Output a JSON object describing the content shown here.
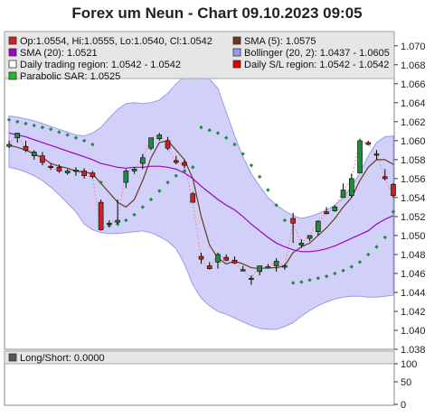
{
  "chart_data": {
    "type": "candlestick",
    "title": "Forex um Neun - Chart 09.10.2023 09:05",
    "ylim": [
      1.038,
      1.0715
    ],
    "yticks": [
      "1.070",
      "1.068",
      "1.066",
      "1.064",
      "1.062",
      "1.060",
      "1.058",
      "1.056",
      "1.054",
      "1.052",
      "1.050",
      "1.048",
      "1.046",
      "1.044",
      "1.042",
      "1.040",
      "1.038"
    ],
    "legend": [
      {
        "label": "Op:1.0554, Hi:1.0555, Lo:1.0540, Cl:1.0542",
        "color": "#cc2222",
        "row": 0,
        "col": 0
      },
      {
        "label": "SMA (5): 1.0575",
        "color": "#6b3a1e",
        "row": 0,
        "col": 1
      },
      {
        "label": "SMA (20): 1.0521",
        "color": "#a000c8",
        "row": 1,
        "col": 0
      },
      {
        "label": "Bollinger (20, 2): 1.0437 - 1.0605",
        "color": "#9a9af0",
        "row": 1,
        "col": 1
      },
      {
        "label": "Daily trading region: 1.0542 - 1.0542",
        "color": "#ffffff",
        "row": 2,
        "col": 0
      },
      {
        "label": "Daily S/L region: 1.0542 - 1.0542",
        "color": "#dd0000",
        "row": 2,
        "col": 1
      },
      {
        "label": "Parabolic SAR: 1.0525",
        "color": "#22bb22",
        "row": 3,
        "col": 0
      }
    ],
    "colors": {
      "up": "#1e8c3a",
      "down": "#cc2222",
      "band": "#c8c8f8",
      "band_edge": "#9a9af0",
      "sma5": "#6b3a1e",
      "sma20": "#a000c8",
      "sar": "#1e8c3a",
      "sl_line": "#ff8888"
    },
    "candles": [
      {
        "o": 1.0594,
        "h": 1.06,
        "l": 1.0592,
        "c": 1.0596
      },
      {
        "o": 1.0603,
        "h": 1.0608,
        "l": 1.0598,
        "c": 1.0608
      },
      {
        "o": 1.0594,
        "h": 1.06,
        "l": 1.0588,
        "c": 1.059
      },
      {
        "o": 1.0584,
        "h": 1.059,
        "l": 1.058,
        "c": 1.0588
      },
      {
        "o": 1.0584,
        "h": 1.0588,
        "l": 1.0574,
        "c": 1.0577
      },
      {
        "o": 1.0573,
        "h": 1.0576,
        "l": 1.0569,
        "c": 1.0572
      },
      {
        "o": 1.0572,
        "h": 1.0575,
        "l": 1.0566,
        "c": 1.0568
      },
      {
        "o": 1.0566,
        "h": 1.057,
        "l": 1.0564,
        "c": 1.0568
      },
      {
        "o": 1.0568,
        "h": 1.0572,
        "l": 1.0563,
        "c": 1.0569
      },
      {
        "o": 1.0568,
        "h": 1.0571,
        "l": 1.056,
        "c": 1.0563
      },
      {
        "o": 1.0566,
        "h": 1.0568,
        "l": 1.056,
        "c": 1.0562
      },
      {
        "o": 1.0535,
        "h": 1.0538,
        "l": 1.0505,
        "c": 1.0506
      },
      {
        "o": 1.0513,
        "h": 1.0516,
        "l": 1.051,
        "c": 1.0513
      },
      {
        "o": 1.0514,
        "h": 1.0538,
        "l": 1.0512,
        "c": 1.0516
      },
      {
        "o": 1.0556,
        "h": 1.057,
        "l": 1.055,
        "c": 1.0568
      },
      {
        "o": 1.0568,
        "h": 1.0572,
        "l": 1.0565,
        "c": 1.057
      },
      {
        "o": 1.0576,
        "h": 1.0586,
        "l": 1.057,
        "c": 1.0582
      },
      {
        "o": 1.0592,
        "h": 1.0603,
        "l": 1.059,
        "c": 1.0603
      },
      {
        "o": 1.0602,
        "h": 1.0608,
        "l": 1.06,
        "c": 1.0606
      },
      {
        "o": 1.06,
        "h": 1.0604,
        "l": 1.059,
        "c": 1.0592
      },
      {
        "o": 1.0579,
        "h": 1.0584,
        "l": 1.0575,
        "c": 1.0577
      },
      {
        "o": 1.0577,
        "h": 1.058,
        "l": 1.0571,
        "c": 1.0574
      },
      {
        "o": 1.0544,
        "h": 1.0546,
        "l": 1.0535,
        "c": 1.0535
      },
      {
        "o": 1.0478,
        "h": 1.0482,
        "l": 1.047,
        "c": 1.0475
      },
      {
        "o": 1.0468,
        "h": 1.0472,
        "l": 1.0464,
        "c": 1.0465
      },
      {
        "o": 1.0472,
        "h": 1.0482,
        "l": 1.0465,
        "c": 1.048
      },
      {
        "o": 1.0477,
        "h": 1.048,
        "l": 1.0473,
        "c": 1.0474
      },
      {
        "o": 1.0474,
        "h": 1.0478,
        "l": 1.047,
        "c": 1.0471
      },
      {
        "o": 1.0464,
        "h": 1.0468,
        "l": 1.0462,
        "c": 1.0463
      },
      {
        "o": 1.0455,
        "h": 1.0458,
        "l": 1.0448,
        "c": 1.0455
      },
      {
        "o": 1.0462,
        "h": 1.0468,
        "l": 1.0458,
        "c": 1.0468
      },
      {
        "o": 1.0466,
        "h": 1.047,
        "l": 1.0465,
        "c": 1.0467
      },
      {
        "o": 1.0468,
        "h": 1.0476,
        "l": 1.0462,
        "c": 1.0473
      },
      {
        "o": 1.0467,
        "h": 1.047,
        "l": 1.0464,
        "c": 1.0468
      },
      {
        "o": 1.0518,
        "h": 1.0524,
        "l": 1.0492,
        "c": 1.0513
      },
      {
        "o": 1.049,
        "h": 1.0496,
        "l": 1.0487,
        "c": 1.0492
      },
      {
        "o": 1.0497,
        "h": 1.05,
        "l": 1.0494,
        "c": 1.05
      },
      {
        "o": 1.0504,
        "h": 1.0516,
        "l": 1.05,
        "c": 1.0515
      },
      {
        "o": 1.0525,
        "h": 1.053,
        "l": 1.0522,
        "c": 1.0523
      },
      {
        "o": 1.0526,
        "h": 1.0532,
        "l": 1.0525,
        "c": 1.053
      },
      {
        "o": 1.054,
        "h": 1.0555,
        "l": 1.054,
        "c": 1.0548
      },
      {
        "o": 1.0542,
        "h": 1.0565,
        "l": 1.054,
        "c": 1.056
      },
      {
        "o": 1.0566,
        "h": 1.0602,
        "l": 1.0566,
        "c": 1.06
      },
      {
        "o": 1.0598,
        "h": 1.06,
        "l": 1.0595,
        "c": 1.0596
      },
      {
        "o": 1.0586,
        "h": 1.059,
        "l": 1.058,
        "c": 1.0585
      },
      {
        "o": 1.0562,
        "h": 1.057,
        "l": 1.0558,
        "c": 1.056
      },
      {
        "o": 1.0554,
        "h": 1.0555,
        "l": 1.054,
        "c": 1.0542
      }
    ],
    "sma5": [
      1.0595,
      1.0593,
      1.059,
      1.0586,
      1.0582,
      1.0576,
      1.0573,
      1.0571,
      1.0568,
      1.0567,
      1.0565,
      1.0555,
      1.0545,
      1.0535,
      1.053,
      1.0538,
      1.0558,
      1.0582,
      1.0598,
      1.06,
      1.059,
      1.058,
      1.056,
      1.052,
      1.049,
      1.0476,
      1.047,
      1.0473,
      1.047,
      1.0466,
      1.0465,
      1.0466,
      1.0466,
      1.0468,
      1.0482,
      1.0488,
      1.0492,
      1.05,
      1.0508,
      1.0518,
      1.053,
      1.054,
      1.0558,
      1.0572,
      1.058,
      1.058,
      1.0575
    ],
    "sma20": [
      1.0608,
      1.0606,
      1.0604,
      1.0601,
      1.0598,
      1.0595,
      1.0592,
      1.0589,
      1.0586,
      1.0583,
      1.058,
      1.0576,
      1.0574,
      1.0572,
      1.0571,
      1.0572,
      1.0572,
      1.0573,
      1.0573,
      1.0572,
      1.057,
      1.0566,
      1.056,
      1.0552,
      1.0545,
      1.0538,
      1.0532,
      1.0527,
      1.052,
      1.0512,
      1.0505,
      1.0498,
      1.0492,
      1.0488,
      1.0485,
      1.0483,
      1.0483,
      1.0484,
      1.0486,
      1.0489,
      1.0493,
      1.0497,
      1.0501,
      1.0505,
      1.0512,
      1.0517,
      1.0521
    ],
    "boll_upper": [
      1.0626,
      1.0625,
      1.0623,
      1.0621,
      1.0618,
      1.0615,
      1.0612,
      1.0609,
      1.0606,
      1.0605,
      1.0608,
      1.0614,
      1.0624,
      1.0633,
      1.0639,
      1.064,
      1.0639,
      1.064,
      1.0643,
      1.065,
      1.066,
      1.0668,
      1.0671,
      1.067,
      1.0665,
      1.0655,
      1.063,
      1.0605,
      1.0583,
      1.0565,
      1.0552,
      1.054,
      1.0532,
      1.0526,
      1.0521,
      1.0518,
      1.052,
      1.0523,
      1.0527,
      1.0532,
      1.054,
      1.0552,
      1.0566,
      1.0584,
      1.0598,
      1.0604,
      1.0605
    ],
    "boll_lower": [
      1.0572,
      1.057,
      1.0567,
      1.0563,
      1.0558,
      1.0551,
      1.0543,
      1.0534,
      1.0525,
      1.0512,
      1.0506,
      1.0503,
      1.0502,
      1.0502,
      1.0503,
      1.0504,
      1.0505,
      1.0503,
      1.0499,
      1.0494,
      1.0486,
      1.047,
      1.0448,
      1.0434,
      1.0426,
      1.042,
      1.0417,
      1.0413,
      1.0409,
      1.0405,
      1.0402,
      1.0401,
      1.0401,
      1.0404,
      1.0408,
      1.0415,
      1.0421,
      1.0426,
      1.043,
      1.0433,
      1.0435,
      1.0436,
      1.0436,
      1.0435,
      1.0435,
      1.0436,
      1.0437
    ],
    "sar": [
      1.0622,
      1.062,
      1.0618,
      1.0616,
      1.0614,
      1.0612,
      1.0609,
      1.0606,
      1.0603,
      1.06,
      1.0596,
      1.0556,
      1.051,
      1.0512,
      1.0516,
      1.0522,
      1.053,
      1.0538,
      1.0547,
      1.0556,
      1.0563,
      1.0568,
      1.0572,
      1.0614,
      1.0611,
      1.0608,
      1.0603,
      1.0596,
      1.0586,
      1.0574,
      1.0562,
      1.0548,
      1.0532,
      1.0516,
      1.045,
      1.0451,
      1.0453,
      1.0455,
      1.0457,
      1.046,
      1.0463,
      1.0467,
      1.0472,
      1.048,
      1.0488,
      1.0498,
      1.0525
    ],
    "lower_panel": {
      "legend": {
        "label": "Long/Short: 0.0000",
        "color": "#555555"
      },
      "yticks": [
        "100",
        "50",
        "0"
      ]
    }
  }
}
